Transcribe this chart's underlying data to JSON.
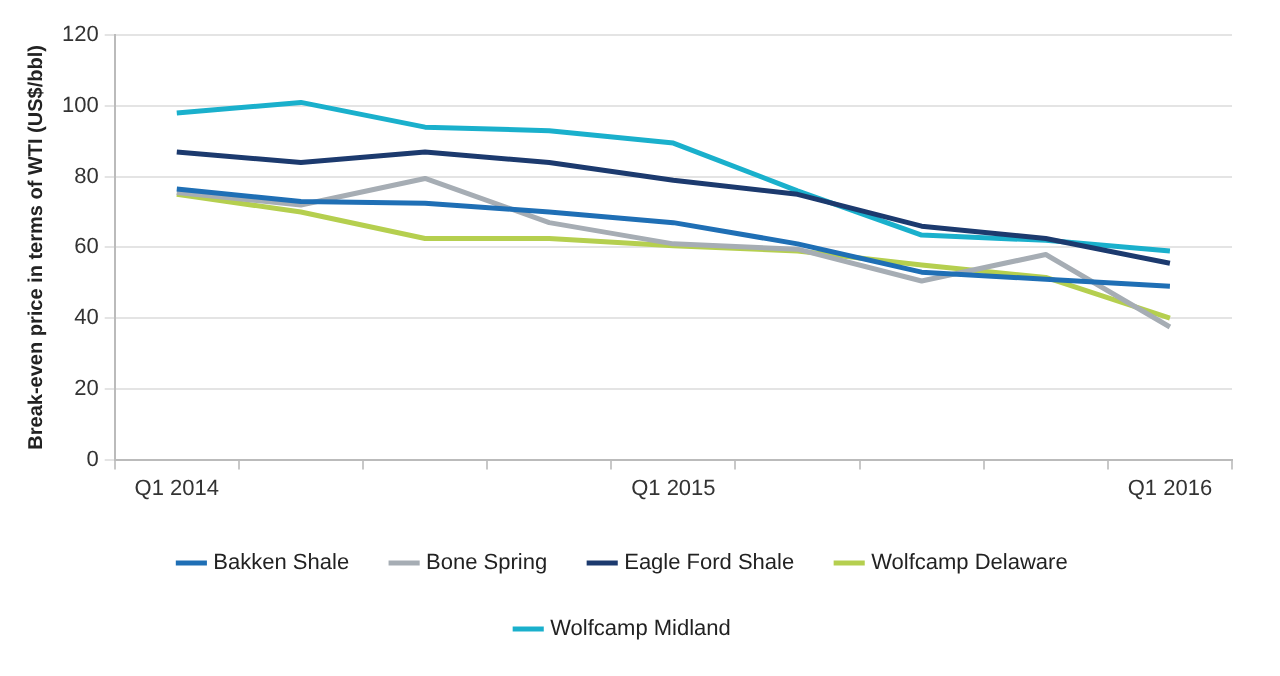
{
  "chart_data": {
    "type": "line",
    "ylabel": "Break-even price in terms of WTI (US$/bbl)",
    "categories": [
      "Q1 2014",
      null,
      null,
      null,
      "Q1 2015",
      null,
      null,
      null,
      "Q1 2016"
    ],
    "series": [
      {
        "name": "Bakken Shale",
        "color": "#1f6fb5",
        "values": [
          76.5,
          73,
          72.5,
          70,
          67,
          61,
          53,
          51,
          49
        ]
      },
      {
        "name": "Bone Spring",
        "color": "#a6adb4",
        "values": [
          75.5,
          72,
          79.5,
          67,
          61,
          59.5,
          50.5,
          58,
          37.5
        ]
      },
      {
        "name": "Eagle Ford Shale",
        "color": "#1c3a6e",
        "values": [
          87,
          84,
          87,
          84,
          79,
          75,
          66,
          62.5,
          55.5
        ]
      },
      {
        "name": "Wolfcamp Delaware",
        "color": "#b5cf4f",
        "values": [
          75,
          70,
          62.5,
          62.5,
          60.5,
          59,
          55,
          51.5,
          40
        ]
      },
      {
        "name": "Wolfcamp Midland",
        "color": "#1ab0cc",
        "values": [
          98,
          101,
          94,
          93,
          89.5,
          76,
          63.5,
          62,
          59
        ]
      }
    ],
    "ylim": [
      0,
      120
    ],
    "yticks": [
      0,
      20,
      40,
      60,
      80,
      100,
      120
    ],
    "grid": "y",
    "legend": "bottom",
    "marker": "none",
    "line_style": "solid"
  }
}
